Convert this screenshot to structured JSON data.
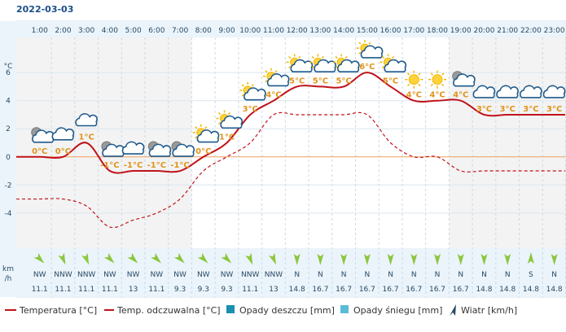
{
  "date": "2022-03-03",
  "y_unit_label": "°C",
  "wind_unit_label": [
    "km",
    "/h"
  ],
  "legend": {
    "temperature": "Temperatura [°C]",
    "feels_like": "Temp. odczuwalna [°C]",
    "rain": "Opady deszczu [mm]",
    "snow": "Opady śniegu [mm]",
    "wind": "Wiatr [km/h]"
  },
  "colors": {
    "temperature": "#c0121b",
    "feels_like": "#c0121b",
    "zero_line": "#f0a060",
    "night_band": "#f3f3f3",
    "day_band": "#ffffff",
    "label": "#e0941a",
    "rain": "#1a8fb0",
    "snow": "#5bbcd6",
    "wind_arrow": "#8dc63f"
  },
  "chart_data": {
    "type": "line",
    "x": [
      "1:00",
      "2:00",
      "3:00",
      "4:00",
      "5:00",
      "6:00",
      "7:00",
      "8:00",
      "9:00",
      "10:00",
      "11:00",
      "12:00",
      "13:00",
      "14:00",
      "15:00",
      "16:00",
      "17:00",
      "18:00",
      "19:00",
      "20:00",
      "21:00",
      "22:00",
      "23:00"
    ],
    "ylim": [
      -6.5,
      8.5
    ],
    "yticks": [
      -4,
      -2,
      0,
      2,
      4,
      6
    ],
    "series": [
      {
        "name": "Temperatura [°C]",
        "values": [
          0,
          0,
          1,
          -1,
          -1,
          -1,
          -1,
          0,
          1,
          3,
          4,
          5,
          5,
          5,
          6,
          5,
          4,
          4,
          4,
          3,
          3,
          3,
          3
        ]
      },
      {
        "name": "Temp. odczuwalna [°C]",
        "values": [
          -3,
          -3,
          -3.5,
          -5,
          -4.5,
          -4,
          -3,
          -1,
          0,
          1,
          3,
          3,
          3,
          3,
          3,
          1,
          0,
          0,
          -1,
          -1,
          -1,
          -1,
          -1
        ]
      }
    ],
    "temp_labels": [
      "0°C",
      "0°C",
      "1°C",
      "-1°C",
      "-1°C",
      "-1°C",
      "-1°C",
      "0°C",
      "1°C",
      "3°C",
      "4°C",
      "5°C",
      "5°C",
      "5°C",
      "6°C",
      "5°C",
      "4°C",
      "4°C",
      "4°C",
      "3°C",
      "3°C",
      "3°C",
      "3°C"
    ],
    "weather_icons": [
      "night-partly-cloudy-icon",
      "cloud-icon",
      "cloud-icon",
      "night-partly-cloudy-icon",
      "cloud-icon",
      "night-partly-cloudy-icon",
      "night-partly-cloudy-icon",
      "sun-cloud-icon",
      "sun-cloud-icon",
      "sun-cloud-icon",
      "sun-cloud-icon",
      "sun-cloud-icon",
      "sun-cloud-icon",
      "sun-cloud-icon",
      "sun-cloud-icon",
      "sun-cloud-icon",
      "sun-icon",
      "sun-icon",
      "night-partly-cloudy-icon",
      "cloud-icon",
      "cloud-icon",
      "cloud-icon",
      "cloud-icon"
    ],
    "wind_dir": [
      "NW",
      "NNW",
      "NNW",
      "NW",
      "NW",
      "NW",
      "NW",
      "NW",
      "NW",
      "NNW",
      "NNW",
      "N",
      "N",
      "N",
      "N",
      "N",
      "N",
      "N",
      "N",
      "N",
      "N",
      "S",
      "N"
    ],
    "wind_speed": [
      "11.1",
      "11.1",
      "11.1",
      "11.1",
      "13",
      "11.1",
      "9.3",
      "9.3",
      "9.3",
      "11.1",
      "13",
      "14.8",
      "16.7",
      "16.7",
      "16.7",
      "16.7",
      "16.7",
      "16.7",
      "16.7",
      "14.8",
      "14.8",
      "14.8",
      "14.8"
    ],
    "wind_deg": [
      315,
      337.5,
      337.5,
      315,
      315,
      315,
      315,
      315,
      315,
      337.5,
      337.5,
      0,
      0,
      0,
      0,
      0,
      0,
      0,
      0,
      0,
      0,
      180,
      0
    ],
    "rain": [
      0,
      0,
      0,
      0,
      0,
      0,
      0,
      0,
      0,
      0,
      0,
      0,
      0,
      0,
      0,
      0,
      0,
      0,
      0,
      0,
      0,
      0,
      0
    ],
    "snow": [
      0,
      0,
      0,
      0,
      0,
      0,
      0,
      0,
      0,
      0,
      0,
      0,
      0,
      0,
      0,
      0,
      0,
      0,
      0,
      0,
      0,
      0,
      0
    ]
  }
}
